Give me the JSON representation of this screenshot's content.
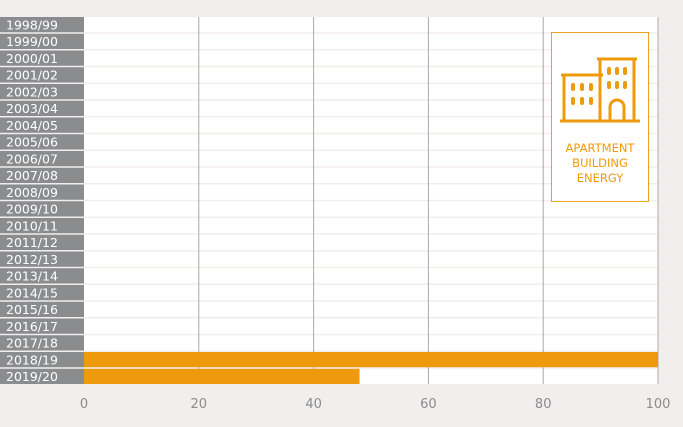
{
  "chart_data": {
    "type": "bar",
    "orientation": "horizontal",
    "categories": [
      "1998/99",
      "1999/00",
      "2000/01",
      "2001/02",
      "2002/03",
      "2003/04",
      "2004/05",
      "2005/06",
      "2006/07",
      "2007/08",
      "2008/09",
      "2009/10",
      "2010/11",
      "2011/12",
      "2012/13",
      "2013/14",
      "2014/15",
      "2015/16",
      "2016/17",
      "2017/18",
      "2018/19",
      "2019/20"
    ],
    "series": [
      {
        "values": [
          0,
          0,
          0,
          0,
          0,
          0,
          0,
          0,
          0,
          0,
          0,
          0,
          0,
          0,
          0,
          0,
          0,
          0,
          0,
          0,
          100,
          48
        ]
      }
    ],
    "xlim": [
      0,
      100
    ],
    "xticks": [
      0,
      20,
      40,
      60,
      80,
      100
    ],
    "grid": "vertical",
    "colors": {
      "bar": "#ee9a0c",
      "category_background": "#8a8c8e"
    }
  },
  "legend": {
    "icon": "apartment-building-icon",
    "lines": [
      "APARTMENT",
      "BUILDING",
      "ENERGY"
    ],
    "placement": "top-right"
  }
}
